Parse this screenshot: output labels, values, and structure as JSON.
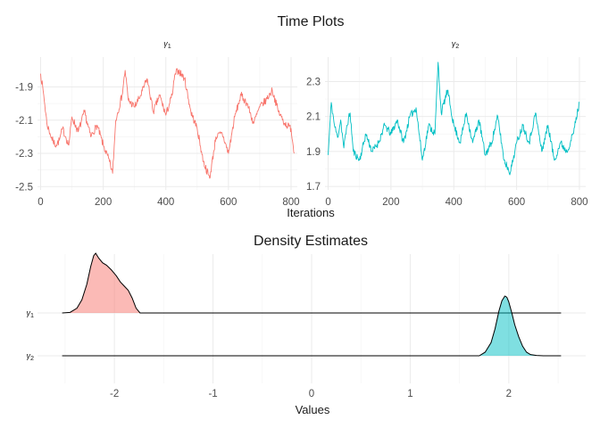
{
  "titles": {
    "top": "Time Plots",
    "bottom": "Density Estimates"
  },
  "colors": {
    "gamma1": "#F8766D",
    "gamma2": "#00BFC4",
    "grid": "#EBEBEB",
    "text": "#4D4D4D"
  },
  "chart_data": [
    {
      "type": "line",
      "title": "Time Plots",
      "panel_title": "γ1",
      "xlabel": "Iterations",
      "ylabel": "",
      "xlim": [
        -10,
        820
      ],
      "ylim": [
        -2.52,
        -1.72
      ],
      "x_ticks": [
        0,
        200,
        400,
        600,
        800
      ],
      "x_tick_labels": [
        "0",
        "200",
        "400",
        "600",
        "800"
      ],
      "y_ticks": [
        -1.9,
        -2.1,
        -2.3,
        -2.5
      ],
      "y_tick_labels": [
        "-1.9",
        "-2.1",
        "-2.3",
        "-2.5"
      ],
      "series": [
        {
          "color": "#F8766D",
          "x": [
            0,
            10,
            20,
            30,
            40,
            50,
            60,
            70,
            80,
            90,
            100,
            120,
            140,
            160,
            180,
            200,
            220,
            230,
            240,
            260,
            270,
            280,
            300,
            320,
            340,
            360,
            380,
            400,
            420,
            430,
            440,
            460,
            480,
            500,
            520,
            540,
            560,
            580,
            600,
            620,
            640,
            660,
            680,
            700,
            720,
            740,
            760,
            780,
            800,
            810
          ],
          "y": [
            -1.82,
            -1.95,
            -2.12,
            -2.18,
            -2.23,
            -2.25,
            -2.22,
            -2.15,
            -2.2,
            -2.25,
            -2.08,
            -2.17,
            -2.05,
            -2.2,
            -2.13,
            -2.25,
            -2.35,
            -2.42,
            -2.1,
            -1.95,
            -1.8,
            -1.98,
            -2.02,
            -1.95,
            -1.85,
            -2.05,
            -1.95,
            -2.07,
            -1.95,
            -1.82,
            -1.8,
            -1.85,
            -2.05,
            -2.15,
            -2.35,
            -2.45,
            -2.2,
            -2.18,
            -2.3,
            -2.08,
            -1.95,
            -2.0,
            -2.12,
            -2.02,
            -1.98,
            -1.92,
            -2.05,
            -2.12,
            -2.15,
            -2.3
          ]
        }
      ]
    },
    {
      "type": "line",
      "title": "Time Plots",
      "panel_title": "γ2",
      "xlabel": "Iterations",
      "ylabel": "",
      "xlim": [
        -10,
        820
      ],
      "ylim": [
        1.68,
        2.44
      ],
      "x_ticks": [
        0,
        200,
        400,
        600,
        800
      ],
      "x_tick_labels": [
        "0",
        "200",
        "400",
        "600",
        "800"
      ],
      "y_ticks": [
        2.3,
        2.1,
        1.9,
        1.7
      ],
      "y_tick_labels": [
        "2.3",
        "2.1",
        "1.9",
        "1.7"
      ],
      "series": [
        {
          "color": "#00BFC4",
          "x": [
            0,
            10,
            20,
            30,
            40,
            50,
            60,
            70,
            80,
            100,
            120,
            140,
            160,
            180,
            200,
            220,
            240,
            260,
            280,
            300,
            320,
            340,
            350,
            360,
            380,
            400,
            420,
            440,
            460,
            480,
            500,
            520,
            540,
            560,
            580,
            600,
            620,
            640,
            660,
            680,
            700,
            720,
            740,
            760,
            780,
            800
          ],
          "y": [
            1.88,
            2.18,
            2.05,
            1.98,
            2.08,
            1.92,
            2.05,
            2.12,
            1.9,
            1.85,
            2.0,
            1.9,
            1.95,
            2.05,
            2.0,
            2.08,
            1.95,
            2.1,
            2.15,
            1.85,
            2.05,
            2.0,
            2.41,
            2.12,
            2.25,
            2.05,
            1.95,
            2.12,
            1.95,
            2.08,
            1.88,
            1.95,
            2.1,
            1.85,
            1.78,
            1.95,
            2.05,
            1.95,
            2.12,
            1.9,
            2.05,
            1.85,
            1.95,
            1.9,
            2.0,
            2.18
          ]
        }
      ]
    },
    {
      "type": "area",
      "title": "Density Estimates",
      "xlabel": "Values",
      "ylabel": "",
      "xlim": [
        -2.78,
        2.78
      ],
      "x_ticks": [
        -2,
        -1,
        0,
        1,
        2
      ],
      "x_tick_labels": [
        "-2",
        "-1",
        "0",
        "1",
        "2"
      ],
      "categories": [
        "γ1",
        "γ2"
      ],
      "series": [
        {
          "color": "#F8766D",
          "baseline_range": [
            -2.53,
            2.53
          ],
          "x": [
            -2.53,
            -2.45,
            -2.38,
            -2.33,
            -2.28,
            -2.24,
            -2.21,
            -2.19,
            -2.16,
            -2.12,
            -2.08,
            -2.03,
            -1.98,
            -1.94,
            -1.9,
            -1.86,
            -1.82,
            -1.78,
            -1.74
          ],
          "density": [
            0.0,
            0.01,
            0.08,
            0.22,
            0.48,
            0.78,
            0.96,
            1.0,
            0.92,
            0.84,
            0.8,
            0.72,
            0.62,
            0.52,
            0.45,
            0.38,
            0.25,
            0.08,
            0.0
          ]
        },
        {
          "color": "#00BFC4",
          "baseline_range": [
            -2.53,
            2.53
          ],
          "x": [
            1.7,
            1.76,
            1.82,
            1.86,
            1.9,
            1.93,
            1.96,
            1.98,
            2.0,
            2.03,
            2.06,
            2.1,
            2.14,
            2.18,
            2.22,
            2.28,
            2.35
          ],
          "density": [
            0.0,
            0.06,
            0.22,
            0.45,
            0.75,
            0.92,
            1.0,
            0.98,
            0.9,
            0.72,
            0.52,
            0.32,
            0.16,
            0.06,
            0.02,
            0.005,
            0.0
          ]
        }
      ]
    }
  ]
}
